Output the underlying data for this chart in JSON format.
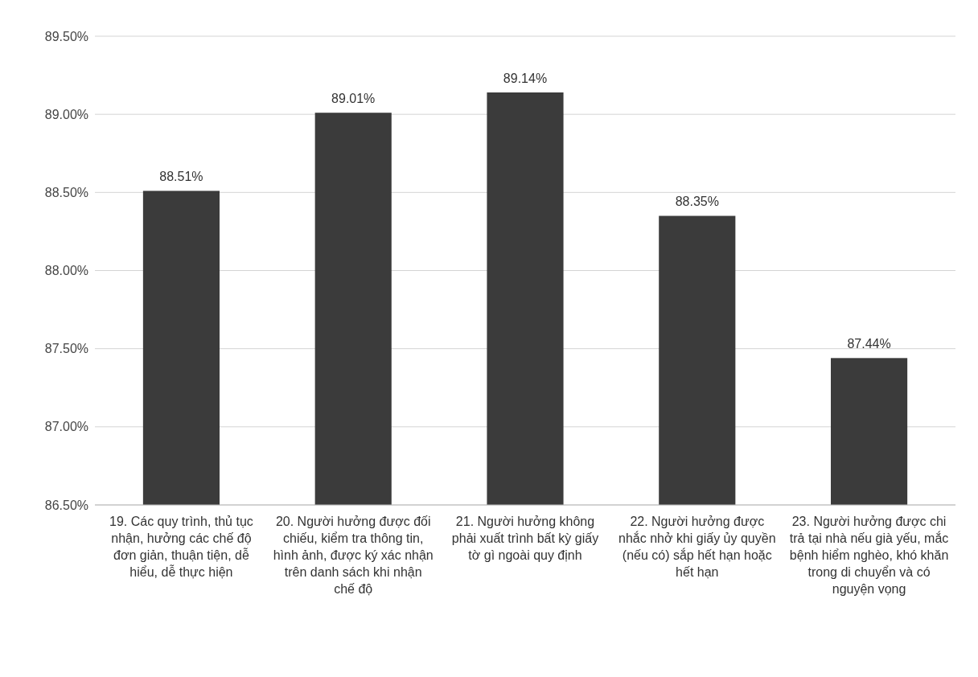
{
  "chart_data": {
    "type": "bar",
    "categories": [
      "19. Các quy trình, thủ tục nhận, hưởng các chế độ đơn giản, thuận tiện, dễ hiểu, dễ thực hiện",
      "20. Người hưởng được đối chiếu, kiểm tra thông tin, hình ảnh, được ký xác nhận trên danh sách khi nhận chế độ",
      "21. Người hưởng không phải xuất trình bất kỳ giấy tờ gì ngoài quy định",
      "22. Người hưởng được nhắc nhở khi giấy ủy quyền (nếu có) sắp hết hạn hoặc hết hạn",
      "23. Người hưởng được chi trả tại nhà nếu già yếu, mắc bệnh hiểm nghèo, khó khăn trong di chuyển và có nguyện vọng"
    ],
    "values": [
      88.51,
      89.01,
      89.14,
      88.35,
      87.44
    ],
    "value_labels": [
      "88.51%",
      "89.01%",
      "89.14%",
      "88.35%",
      "87.44%"
    ],
    "color": "#3b3b3b",
    "ylim": [
      86.5,
      89.5
    ],
    "yticks": [
      {
        "value": 86.5,
        "label": "86.50%"
      },
      {
        "value": 87,
        "label": "87.00%"
      },
      {
        "value": 87.5,
        "label": "87.50%"
      },
      {
        "value": 88,
        "label": "88.00%"
      },
      {
        "value": 88.5,
        "label": "88.50%"
      },
      {
        "value": 89,
        "label": "89.00%"
      },
      {
        "value": 89.5,
        "label": "89.50%"
      }
    ],
    "grid": "y"
  }
}
